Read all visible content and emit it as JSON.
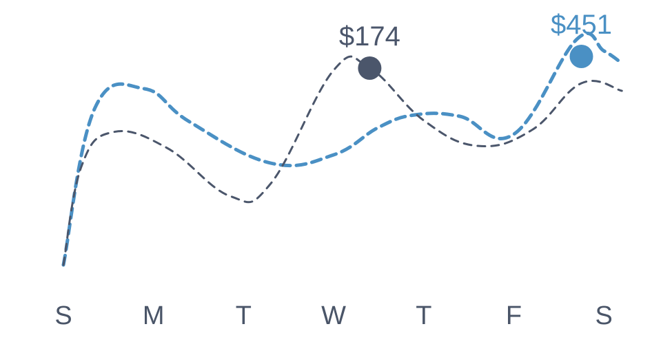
{
  "chart_data": {
    "type": "line",
    "categories": [
      "S",
      "M",
      "T",
      "W",
      "T",
      "F",
      "S"
    ],
    "series": [
      {
        "color": "#4a90c4",
        "style": "dashed-thick",
        "x": [
          0.0,
          0.35,
          0.9,
          1.4,
          2.3,
          3.0,
          3.5,
          3.9,
          4.4,
          5.0,
          5.7,
          6.0,
          6.2
        ],
        "values": [
          62,
          290,
          318,
          270,
          210,
          222,
          262,
          280,
          278,
          252,
          390,
          373,
          355
        ]
      },
      {
        "color": "#4b566b",
        "style": "dashed-thin",
        "x": [
          0.0,
          0.2,
          0.55,
          1.15,
          1.85,
          2.3,
          3.0,
          3.4,
          4.0,
          4.6,
          5.2,
          5.75,
          6.2
        ],
        "values": [
          62,
          205,
          255,
          232,
          162,
          180,
          345,
          348,
          272,
          235,
          258,
          326,
          315
        ]
      }
    ],
    "callouts": [
      {
        "label": "$174",
        "x": 3.4,
        "y": 348,
        "series": 1
      },
      {
        "label": "$451",
        "x": 5.75,
        "y": 365,
        "series": 0
      }
    ],
    "ylim": [
      0,
      440
    ],
    "grid": false
  }
}
